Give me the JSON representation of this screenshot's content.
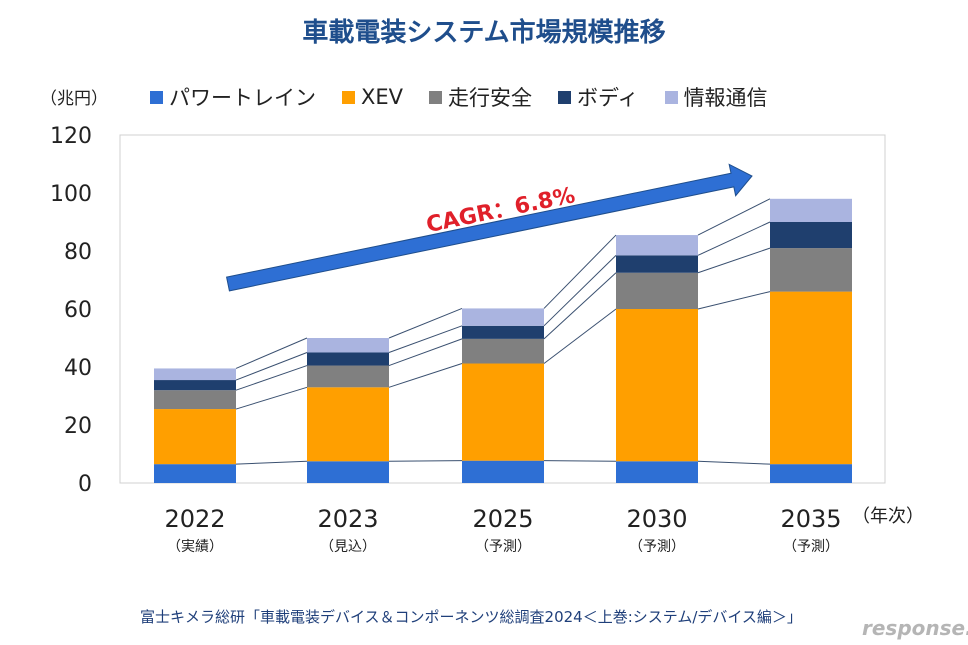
{
  "title": "車載電装システム市場規模推移",
  "unit_label": "（兆円）",
  "legend": [
    {
      "name": "パワートレイン",
      "color": "#2e6fd4"
    },
    {
      "name": "XEV",
      "color": "#ff9f00"
    },
    {
      "name": "走行安全",
      "color": "#808080"
    },
    {
      "name": "ボディ",
      "color": "#1f3f6e"
    },
    {
      "name": "情報通信",
      "color": "#aab4e0"
    }
  ],
  "cagr_label": "CAGR：6.8%",
  "xaxis_unit": "（年次）",
  "source": "富士キメラ総研「車載電装デバイス＆コンポーネンツ総調査2024＜上巻:システム/デバイス編＞」",
  "watermark": "response.",
  "chart_data": {
    "type": "bar",
    "stacked": true,
    "categories": [
      "2022",
      "2023",
      "2025",
      "2030",
      "2035"
    ],
    "category_notes": [
      "（実績）",
      "（見込）",
      "（予測）",
      "（予測）",
      "（予測）"
    ],
    "ylim": [
      0,
      120
    ],
    "yticks": [
      0,
      20,
      40,
      60,
      80,
      100,
      120
    ],
    "ylabel": "（兆円）",
    "legend_position": "top",
    "series": [
      {
        "name": "パワートレイン",
        "values": [
          6.5,
          7.5,
          7.7,
          7.5,
          6.5
        ]
      },
      {
        "name": "XEV",
        "values": [
          19.0,
          25.5,
          33.5,
          52.5,
          59.5
        ]
      },
      {
        "name": "走行安全",
        "values": [
          6.5,
          7.5,
          8.5,
          12.5,
          15.0
        ]
      },
      {
        "name": "ボディ",
        "values": [
          3.5,
          4.5,
          4.5,
          6.0,
          9.0
        ]
      },
      {
        "name": "情報通信",
        "values": [
          4.0,
          5.0,
          6.0,
          7.0,
          8.0
        ]
      }
    ]
  }
}
